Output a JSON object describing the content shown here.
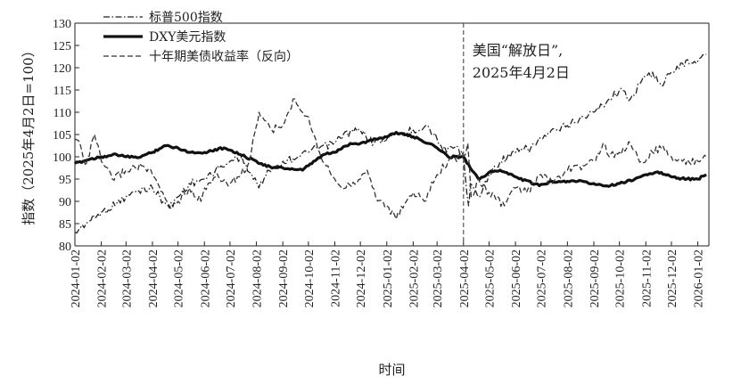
{
  "chart_data": {
    "type": "line",
    "title": "",
    "xlabel": "时间",
    "ylabel": "指数（2025年4月2日=100）",
    "ylim": [
      80,
      130
    ],
    "yticks": [
      80,
      85,
      90,
      95,
      100,
      105,
      110,
      115,
      120,
      125,
      130
    ],
    "xlim": [
      "2024-01-02",
      "2026-01-15"
    ],
    "xticks": [
      "2024-01-02",
      "2024-02-02",
      "2024-03-02",
      "2024-04-02",
      "2024-05-02",
      "2024-06-02",
      "2024-07-02",
      "2024-08-02",
      "2024-09-02",
      "2024-10-02",
      "2024-11-02",
      "2024-12-02",
      "2025-01-02",
      "2025-02-02",
      "2025-03-02",
      "2025-04-02",
      "2025-05-02",
      "2025-06-02",
      "2025-07-02",
      "2025-08-02",
      "2025-09-02",
      "2025-10-02",
      "2025-11-02",
      "2025-12-02",
      "2026-01-02"
    ],
    "grid": false,
    "legend_position": "top-left",
    "annotation": {
      "date": "2025-04-02",
      "line1": "美国“解放日”,",
      "line2": "2025年4月2日"
    },
    "series": [
      {
        "name": "标普500指数",
        "style": "dash-dot",
        "color": "#222222",
        "points": [
          [
            "2024-01-02",
            83
          ],
          [
            "2024-01-15",
            85
          ],
          [
            "2024-02-02",
            87.5
          ],
          [
            "2024-02-20",
            89.5
          ],
          [
            "2024-03-02",
            91
          ],
          [
            "2024-03-15",
            92.5
          ],
          [
            "2024-04-02",
            93
          ],
          [
            "2024-04-15",
            90
          ],
          [
            "2024-04-22",
            88.5
          ],
          [
            "2024-05-02",
            91
          ],
          [
            "2024-05-15",
            94
          ],
          [
            "2024-06-02",
            95
          ],
          [
            "2024-06-15",
            97
          ],
          [
            "2024-07-02",
            99
          ],
          [
            "2024-07-16",
            100
          ],
          [
            "2024-07-25",
            96.5
          ],
          [
            "2024-08-05",
            93
          ],
          [
            "2024-08-15",
            97
          ],
          [
            "2024-09-02",
            99
          ],
          [
            "2024-09-20",
            100
          ],
          [
            "2024-10-02",
            101
          ],
          [
            "2024-10-15",
            102
          ],
          [
            "2024-11-02",
            103
          ],
          [
            "2024-11-12",
            105
          ],
          [
            "2024-12-02",
            106
          ],
          [
            "2024-12-18",
            103
          ],
          [
            "2025-01-02",
            104
          ],
          [
            "2025-01-15",
            105
          ],
          [
            "2025-02-02",
            106
          ],
          [
            "2025-02-19",
            107
          ],
          [
            "2025-03-02",
            104
          ],
          [
            "2025-03-13",
            101
          ],
          [
            "2025-03-25",
            102.5
          ],
          [
            "2025-04-02",
            100
          ],
          [
            "2025-04-08",
            89
          ],
          [
            "2025-04-10",
            94
          ],
          [
            "2025-04-21",
            91
          ],
          [
            "2025-05-02",
            96
          ],
          [
            "2025-05-15",
            99
          ],
          [
            "2025-06-02",
            101
          ],
          [
            "2025-06-20",
            102
          ],
          [
            "2025-07-02",
            104
          ],
          [
            "2025-07-20",
            106
          ],
          [
            "2025-08-02",
            107
          ],
          [
            "2025-08-20",
            109
          ],
          [
            "2025-09-02",
            110
          ],
          [
            "2025-09-20",
            113
          ],
          [
            "2025-10-02",
            115
          ],
          [
            "2025-10-15",
            113
          ],
          [
            "2025-10-28",
            117
          ],
          [
            "2025-11-10",
            119
          ],
          [
            "2025-11-20",
            116
          ],
          [
            "2025-12-02",
            119
          ],
          [
            "2025-12-15",
            121
          ],
          [
            "2026-01-02",
            121.5
          ],
          [
            "2026-01-12",
            123
          ]
        ]
      },
      {
        "name": "DXY美元指数",
        "style": "solid-bold",
        "color": "#111111",
        "points": [
          [
            "2024-01-02",
            98.5
          ],
          [
            "2024-01-20",
            99.5
          ],
          [
            "2024-02-02",
            100
          ],
          [
            "2024-02-20",
            100.5
          ],
          [
            "2024-03-02",
            100
          ],
          [
            "2024-03-15",
            99.8
          ],
          [
            "2024-04-02",
            101
          ],
          [
            "2024-04-16",
            102.5
          ],
          [
            "2024-05-02",
            102
          ],
          [
            "2024-05-15",
            101
          ],
          [
            "2024-06-02",
            101
          ],
          [
            "2024-06-25",
            102
          ],
          [
            "2024-07-02",
            101.5
          ],
          [
            "2024-07-20",
            100
          ],
          [
            "2024-08-02",
            99
          ],
          [
            "2024-08-20",
            97.5
          ],
          [
            "2024-09-02",
            97.5
          ],
          [
            "2024-09-25",
            97
          ],
          [
            "2024-10-02",
            98
          ],
          [
            "2024-10-20",
            100.5
          ],
          [
            "2024-11-02",
            101
          ],
          [
            "2024-11-20",
            103
          ],
          [
            "2024-12-02",
            103
          ],
          [
            "2024-12-20",
            104
          ],
          [
            "2025-01-02",
            104.5
          ],
          [
            "2025-01-13",
            105.5
          ],
          [
            "2025-02-02",
            104.5
          ],
          [
            "2025-02-20",
            103
          ],
          [
            "2025-03-02",
            102
          ],
          [
            "2025-03-15",
            100
          ],
          [
            "2025-04-02",
            100
          ],
          [
            "2025-04-10",
            97.5
          ],
          [
            "2025-04-21",
            95
          ],
          [
            "2025-05-02",
            96.5
          ],
          [
            "2025-05-15",
            97
          ],
          [
            "2025-06-02",
            95.5
          ],
          [
            "2025-06-30",
            93.5
          ],
          [
            "2025-07-15",
            94.5
          ],
          [
            "2025-08-02",
            94.5
          ],
          [
            "2025-08-20",
            94.5
          ],
          [
            "2025-09-02",
            94
          ],
          [
            "2025-09-17",
            93.5
          ],
          [
            "2025-10-02",
            94
          ],
          [
            "2025-10-20",
            95
          ],
          [
            "2025-11-02",
            96
          ],
          [
            "2025-11-20",
            96.5
          ],
          [
            "2025-12-02",
            95.5
          ],
          [
            "2025-12-20",
            95
          ],
          [
            "2026-01-02",
            95
          ],
          [
            "2026-01-12",
            96
          ]
        ]
      },
      {
        "name": "十年期美债收益率（反向）",
        "style": "dashed",
        "color": "#333333",
        "points": [
          [
            "2024-01-02",
            104
          ],
          [
            "2024-01-08",
            103
          ],
          [
            "2024-01-15",
            98
          ],
          [
            "2024-01-25",
            105
          ],
          [
            "2024-02-02",
            99
          ],
          [
            "2024-02-15",
            95
          ],
          [
            "2024-03-02",
            97
          ],
          [
            "2024-03-20",
            98
          ],
          [
            "2024-04-02",
            96
          ],
          [
            "2024-04-16",
            91
          ],
          [
            "2024-04-25",
            88.5
          ],
          [
            "2024-05-02",
            90
          ],
          [
            "2024-05-15",
            93
          ],
          [
            "2024-05-29",
            90
          ],
          [
            "2024-06-02",
            93
          ],
          [
            "2024-06-15",
            95.5
          ],
          [
            "2024-07-02",
            94
          ],
          [
            "2024-07-15",
            96
          ],
          [
            "2024-07-25",
            99
          ],
          [
            "2024-08-02",
            107
          ],
          [
            "2024-08-05",
            110
          ],
          [
            "2024-08-20",
            106
          ],
          [
            "2024-09-02",
            107
          ],
          [
            "2024-09-16",
            113
          ],
          [
            "2024-09-25",
            110
          ],
          [
            "2024-10-02",
            109
          ],
          [
            "2024-10-15",
            101
          ],
          [
            "2024-11-02",
            95
          ],
          [
            "2024-11-15",
            93
          ],
          [
            "2024-12-02",
            95
          ],
          [
            "2024-12-10",
            97
          ],
          [
            "2024-12-20",
            91
          ],
          [
            "2025-01-02",
            89
          ],
          [
            "2025-01-13",
            86
          ],
          [
            "2025-01-25",
            90
          ],
          [
            "2025-02-02",
            92
          ],
          [
            "2025-02-15",
            90
          ],
          [
            "2025-03-02",
            96
          ],
          [
            "2025-03-15",
            99
          ],
          [
            "2025-04-02",
            100
          ],
          [
            "2025-04-07",
            103
          ],
          [
            "2025-04-11",
            91
          ],
          [
            "2025-04-20",
            95
          ],
          [
            "2025-05-02",
            92
          ],
          [
            "2025-05-20",
            89
          ],
          [
            "2025-06-02",
            93
          ],
          [
            "2025-06-15",
            92
          ],
          [
            "2025-07-02",
            96
          ],
          [
            "2025-07-15",
            94
          ],
          [
            "2025-08-02",
            97
          ],
          [
            "2025-08-20",
            98
          ],
          [
            "2025-09-02",
            99
          ],
          [
            "2025-09-15",
            103
          ],
          [
            "2025-09-20",
            100
          ],
          [
            "2025-10-02",
            101
          ],
          [
            "2025-10-15",
            103
          ],
          [
            "2025-10-28",
            99
          ],
          [
            "2025-11-10",
            101
          ],
          [
            "2025-11-20",
            102
          ],
          [
            "2025-12-02",
            100
          ],
          [
            "2025-12-15",
            99
          ],
          [
            "2026-01-02",
            99
          ],
          [
            "2026-01-12",
            100
          ]
        ]
      }
    ]
  }
}
